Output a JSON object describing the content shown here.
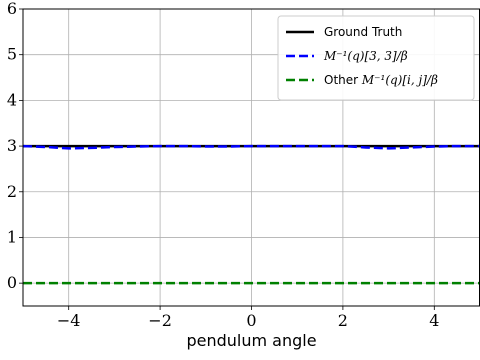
{
  "chart_data": {
    "type": "line",
    "title": "",
    "xlabel": "pendulum angle",
    "ylabel": "",
    "xlim": [
      -5,
      5
    ],
    "ylim": [
      -0.5,
      6
    ],
    "xticks": [
      -4,
      -2,
      0,
      2,
      4
    ],
    "xtick_labels": [
      "−4",
      "−2",
      "0",
      "2",
      "4"
    ],
    "yticks": [
      0,
      1,
      2,
      3,
      4,
      5,
      6
    ],
    "ytick_labels": [
      "0",
      "1",
      "2",
      "3",
      "4",
      "5",
      "6"
    ],
    "grid": true,
    "legend_position": "top-right",
    "series": [
      {
        "name": "Ground Truth",
        "color": "#000000",
        "style": "solid",
        "x": [
          -5,
          -4,
          -3,
          -2,
          -1,
          0,
          1,
          2,
          3,
          4,
          5
        ],
        "y": [
          3.0,
          3.0,
          3.0,
          3.0,
          3.0,
          3.0,
          3.0,
          3.0,
          3.0,
          3.0,
          3.0
        ]
      },
      {
        "name": "M^{-1}(q)[3,3]/β",
        "color": "#0000ff",
        "style": "dashed",
        "x": [
          -5,
          -4.5,
          -4,
          -3.5,
          -3,
          -2.5,
          -2,
          -1.5,
          -1,
          -0.5,
          0,
          0.5,
          1,
          1.5,
          2,
          2.5,
          3,
          3.5,
          4,
          4.5,
          5
        ],
        "y": [
          3.0,
          2.98,
          2.95,
          2.96,
          2.98,
          2.99,
          3.0,
          3.0,
          2.99,
          2.99,
          3.0,
          3.0,
          3.0,
          3.0,
          3.0,
          2.97,
          2.95,
          2.97,
          2.99,
          3.0,
          3.0
        ]
      },
      {
        "name": "Other M^{-1}(q)[i,j]/β",
        "color": "#008000",
        "style": "dashed",
        "x": [
          -5,
          5
        ],
        "y": [
          0.0,
          0.0
        ]
      }
    ],
    "legend": {
      "entries": [
        {
          "prefix": "Ground Truth",
          "math": "",
          "color": "#000000",
          "style": "solid"
        },
        {
          "prefix": "",
          "math": "M⁻¹(q)[3, 3]/β",
          "color": "#0000ff",
          "style": "dashed"
        },
        {
          "prefix": "Other ",
          "math": "M⁻¹(q)[i, j]/β",
          "color": "#008000",
          "style": "dashed"
        }
      ]
    }
  }
}
